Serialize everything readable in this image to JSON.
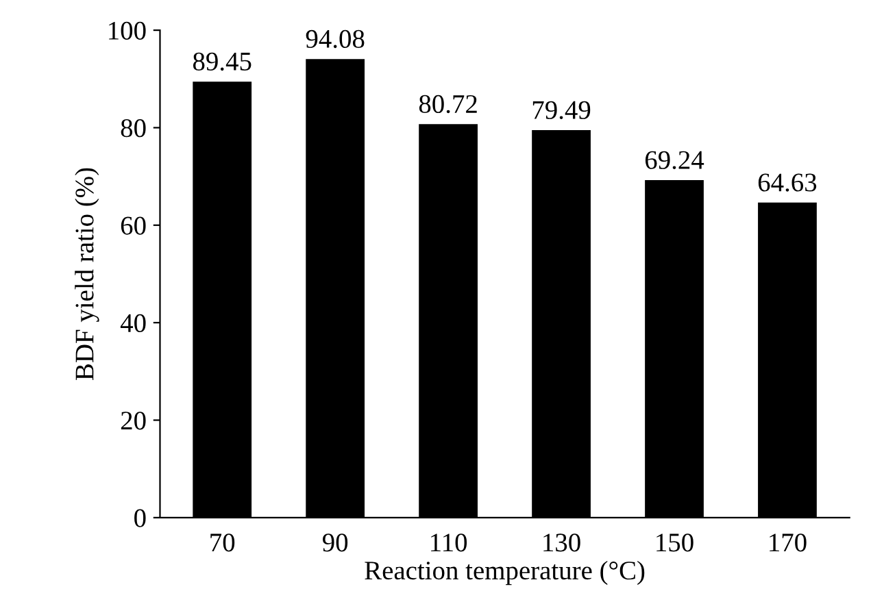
{
  "chart_data": {
    "type": "bar",
    "xlabel": "Reaction temperature (°C)",
    "ylabel": "BDF yield ratio (%)",
    "categories": [
      "70",
      "90",
      "110",
      "130",
      "150",
      "170"
    ],
    "values": [
      89.45,
      94.08,
      80.72,
      79.49,
      69.24,
      64.63
    ],
    "color": "#000000",
    "ylim": [
      0,
      100
    ],
    "yticks": [
      0,
      20,
      40,
      60,
      80,
      100
    ],
    "grid": false,
    "data_labels": true
  }
}
